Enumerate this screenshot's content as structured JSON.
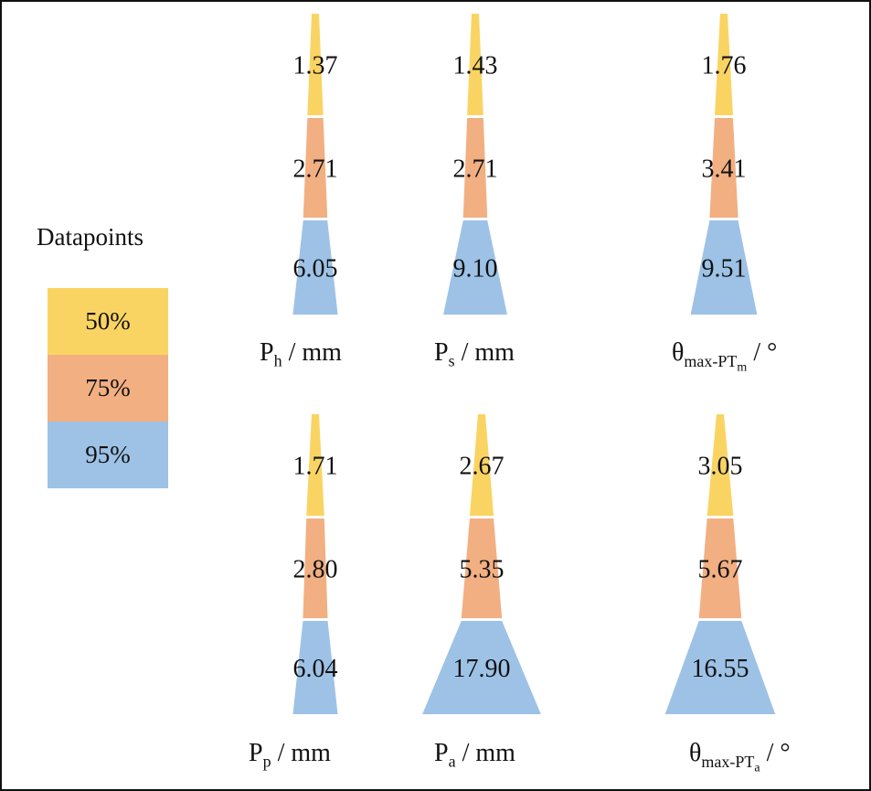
{
  "legend": {
    "title": "Datapoints",
    "items": [
      {
        "label": "50%",
        "color": "#FAD463"
      },
      {
        "label": "75%",
        "color": "#F2AF82"
      },
      {
        "label": "95%",
        "color": "#9DC2E6"
      }
    ]
  },
  "chart_data": [
    {
      "type": "stacked-trapezoid",
      "label_main": "P",
      "label_sub": "h",
      "label_subsub": "",
      "unit": "/ mm",
      "values": [
        {
          "percentile": "50%",
          "value": "1.37"
        },
        {
          "percentile": "75%",
          "value": "2.71"
        },
        {
          "percentile": "95%",
          "value": "6.05"
        }
      ]
    },
    {
      "type": "stacked-trapezoid",
      "label_main": "P",
      "label_sub": "s",
      "label_subsub": "",
      "unit": "/ mm",
      "values": [
        {
          "percentile": "50%",
          "value": "1.43"
        },
        {
          "percentile": "75%",
          "value": "2.71"
        },
        {
          "percentile": "95%",
          "value": "9.10"
        }
      ]
    },
    {
      "type": "stacked-trapezoid",
      "label_main": "θ",
      "label_sub": "max-PT",
      "label_subsub": "m",
      "unit": "/ °",
      "values": [
        {
          "percentile": "50%",
          "value": "1.76"
        },
        {
          "percentile": "75%",
          "value": "3.41"
        },
        {
          "percentile": "95%",
          "value": "9.51"
        }
      ]
    },
    {
      "type": "stacked-trapezoid",
      "label_main": "P",
      "label_sub": "p",
      "label_subsub": "",
      "unit": "/ mm",
      "values": [
        {
          "percentile": "50%",
          "value": "1.71"
        },
        {
          "percentile": "75%",
          "value": "2.80"
        },
        {
          "percentile": "95%",
          "value": "6.04"
        }
      ]
    },
    {
      "type": "stacked-trapezoid",
      "label_main": "P",
      "label_sub": "a",
      "label_subsub": "",
      "unit": "/ mm",
      "values": [
        {
          "percentile": "50%",
          "value": "2.67"
        },
        {
          "percentile": "75%",
          "value": "5.35"
        },
        {
          "percentile": "95%",
          "value": "17.90"
        }
      ]
    },
    {
      "type": "stacked-trapezoid",
      "label_main": "θ",
      "label_sub": "max-PT",
      "label_subsub": "a",
      "unit": "/ °",
      "values": [
        {
          "percentile": "50%",
          "value": "3.05"
        },
        {
          "percentile": "75%",
          "value": "5.67"
        },
        {
          "percentile": "95%",
          "value": "16.55"
        }
      ]
    }
  ]
}
